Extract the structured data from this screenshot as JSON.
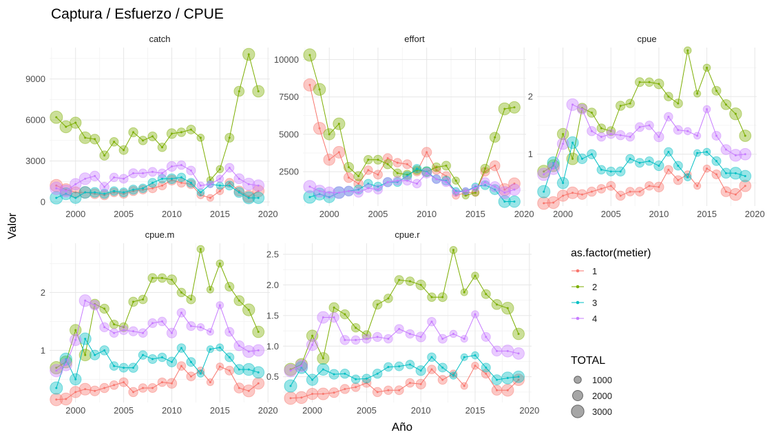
{
  "title": "Captura / Esfuerzo / CPUE",
  "xlabel": "Año",
  "ylabel": "Valor",
  "legend": {
    "color_title": "as.factor(metier)",
    "size_title": "TOTAL",
    "size_values": [
      1000,
      2000,
      3000
    ]
  },
  "colors": {
    "1": "#F8766D",
    "2": "#7CAE00",
    "3": "#00BFC4",
    "4": "#C77CFF"
  },
  "chart_data": {
    "type": "line",
    "layout": "facet_wrap",
    "x_ticks": [
      2000,
      2005,
      2010,
      2015,
      2020
    ],
    "xlim": [
      1997.3,
      2020.2
    ],
    "years": [
      1998,
      1999,
      2000,
      2001,
      2002,
      2003,
      2004,
      2005,
      2006,
      2007,
      2008,
      2009,
      2010,
      2011,
      2012,
      2013,
      2014,
      2015,
      2016,
      2017,
      2018,
      2019
    ],
    "total": [
      2900,
      2700,
      2400,
      2600,
      1800,
      1600,
      1400,
      1500,
      1600,
      1400,
      1500,
      1400,
      1800,
      1400,
      1500,
      1000,
      900,
      1000,
      1500,
      1900,
      2700,
      2500
    ],
    "facets": [
      {
        "name": "catch",
        "ylim": [
          -300,
          11300
        ],
        "y_ticks": [
          0,
          3000,
          6000,
          9000
        ],
        "series": [
          {
            "name": "1",
            "values": [
              1200,
              900,
              700,
              700,
              600,
              500,
              700,
              600,
              800,
              900,
              1000,
              1200,
              1600,
              1400,
              1300,
              500,
              300,
              800,
              1400,
              800,
              400,
              800
            ]
          },
          {
            "name": "2",
            "values": [
              6200,
              5500,
              5800,
              4700,
              4600,
              3400,
              4400,
              3800,
              5100,
              4500,
              4800,
              4000,
              5000,
              5100,
              5300,
              4700,
              1600,
              2400,
              4700,
              8100,
              10800,
              8100
            ]
          },
          {
            "name": "3",
            "values": [
              300,
              600,
              300,
              700,
              700,
              600,
              800,
              700,
              900,
              1000,
              1400,
              1700,
              1700,
              1800,
              1400,
              700,
              1300,
              1200,
              1200,
              700,
              300,
              300
            ]
          },
          {
            "name": "4",
            "values": [
              1000,
              800,
              1300,
              1700,
              1900,
              1100,
              1800,
              1700,
              2100,
              2100,
              2200,
              2100,
              2600,
              2700,
              2300,
              1200,
              1300,
              1700,
              2500,
              1700,
              1300,
              1200
            ]
          }
        ]
      },
      {
        "name": "effort",
        "ylim": [
          200,
          10800
        ],
        "y_ticks": [
          2500,
          5000,
          7500,
          10000
        ],
        "series": [
          {
            "name": "1",
            "values": [
              8300,
              5400,
              3300,
              3800,
              2100,
              1700,
              2600,
              2300,
              3400,
              3100,
              3000,
              2500,
              3800,
              2600,
              2200,
              900,
              1100,
              1100,
              2500,
              2900,
              1300,
              1700
            ]
          },
          {
            "name": "2",
            "values": [
              10300,
              8000,
              5000,
              5700,
              2800,
              2200,
              3300,
              3300,
              3000,
              2400,
              2300,
              2600,
              2500,
              2800,
              2900,
              1900,
              900,
              1100,
              2700,
              4800,
              6700,
              6800
            ]
          },
          {
            "name": "3",
            "values": [
              800,
              1000,
              800,
              1100,
              1200,
              1300,
              1700,
              1500,
              1800,
              1800,
              2200,
              2700,
              2500,
              2000,
              1900,
              1200,
              1200,
              1500,
              1600,
              1300,
              500,
              500
            ]
          },
          {
            "name": "4",
            "values": [
              1500,
              1200,
              1100,
              1100,
              1200,
              1100,
              1400,
              1300,
              1800,
              1900,
              1900,
              1700,
              2400,
              2000,
              1800,
              1100,
              1200,
              1400,
              1800,
              1500,
              1100,
              1300
            ]
          }
        ]
      },
      {
        "name": "cpue",
        "ylim": [
          0.1,
          2.85
        ],
        "y_ticks": [
          1,
          2
        ],
        "series": [
          {
            "name": "1",
            "values": [
              0.15,
              0.16,
              0.28,
              0.33,
              0.3,
              0.35,
              0.4,
              0.45,
              0.28,
              0.35,
              0.35,
              0.45,
              0.43,
              0.73,
              0.55,
              0.65,
              0.45,
              0.75,
              0.65,
              0.35,
              0.3,
              0.45
            ]
          },
          {
            "name": "2",
            "values": [
              0.7,
              0.8,
              1.35,
              0.92,
              1.8,
              1.72,
              1.45,
              1.4,
              1.84,
              1.88,
              2.25,
              2.25,
              2.22,
              2.0,
              1.88,
              2.8,
              2.05,
              2.5,
              2.1,
              1.86,
              1.7,
              1.32
            ]
          },
          {
            "name": "3",
            "values": [
              0.35,
              0.85,
              0.5,
              1.2,
              0.92,
              1.0,
              0.73,
              0.7,
              0.7,
              0.92,
              0.85,
              0.88,
              0.8,
              1.04,
              0.8,
              0.6,
              1.02,
              1.04,
              0.88,
              0.67,
              0.67,
              0.62
            ]
          },
          {
            "name": "4",
            "values": [
              0.65,
              0.75,
              1.18,
              1.86,
              1.78,
              1.4,
              1.3,
              1.35,
              1.33,
              1.3,
              1.47,
              1.5,
              1.3,
              1.65,
              1.42,
              1.4,
              1.32,
              1.78,
              1.32,
              1.08,
              0.98,
              1.0
            ]
          }
        ]
      },
      {
        "name": "cpue.m",
        "ylim": [
          0.1,
          2.85
        ],
        "y_ticks": [
          1,
          2
        ],
        "series": [
          {
            "name": "1",
            "values": [
              0.15,
              0.16,
              0.28,
              0.33,
              0.3,
              0.35,
              0.4,
              0.45,
              0.28,
              0.35,
              0.35,
              0.45,
              0.43,
              0.73,
              0.55,
              0.65,
              0.45,
              0.72,
              0.65,
              0.35,
              0.3,
              0.43
            ]
          },
          {
            "name": "2",
            "values": [
              0.7,
              0.8,
              1.35,
              0.92,
              1.8,
              1.72,
              1.45,
              1.4,
              1.84,
              1.88,
              2.25,
              2.25,
              2.22,
              2.0,
              1.88,
              2.75,
              2.05,
              2.5,
              2.1,
              1.86,
              1.7,
              1.32
            ]
          },
          {
            "name": "3",
            "values": [
              0.35,
              0.85,
              0.5,
              1.2,
              0.92,
              1.0,
              0.73,
              0.7,
              0.7,
              0.92,
              0.85,
              0.88,
              0.8,
              1.04,
              0.8,
              0.6,
              1.02,
              1.05,
              0.88,
              0.67,
              0.67,
              0.62
            ]
          },
          {
            "name": "4",
            "values": [
              0.65,
              0.75,
              1.18,
              1.86,
              1.78,
              1.4,
              1.3,
              1.35,
              1.33,
              1.3,
              1.47,
              1.5,
              1.3,
              1.65,
              1.42,
              1.4,
              1.32,
              1.78,
              1.32,
              1.08,
              0.98,
              1.0
            ]
          }
        ]
      },
      {
        "name": "cpue.r",
        "ylim": [
          0.08,
          2.68
        ],
        "y_ticks": [
          0.5,
          1.0,
          1.5,
          2.0,
          2.5
        ],
        "y_tick_labels": [
          "0.5",
          "1.0",
          "1.5",
          "2.0",
          "2.5"
        ],
        "series": [
          {
            "name": "1",
            "values": [
              0.15,
              0.16,
              0.22,
              0.22,
              0.24,
              0.3,
              0.33,
              0.4,
              0.25,
              0.28,
              0.28,
              0.4,
              0.38,
              0.62,
              0.45,
              0.55,
              0.35,
              0.68,
              0.55,
              0.28,
              0.28,
              0.45
            ]
          },
          {
            "name": "2",
            "values": [
              0.62,
              0.7,
              1.17,
              0.8,
              1.63,
              1.52,
              1.3,
              1.18,
              1.68,
              1.78,
              2.08,
              2.06,
              2.0,
              1.8,
              1.8,
              2.57,
              1.88,
              2.15,
              1.85,
              1.68,
              1.62,
              1.2
            ]
          },
          {
            "name": "3",
            "values": [
              0.35,
              0.65,
              0.45,
              0.62,
              0.54,
              0.55,
              0.46,
              0.47,
              0.55,
              0.66,
              0.67,
              0.7,
              0.6,
              0.82,
              0.65,
              0.52,
              0.82,
              0.85,
              0.65,
              0.45,
              0.48,
              0.5
            ]
          },
          {
            "name": "4",
            "values": [
              0.6,
              0.68,
              1.02,
              1.47,
              1.47,
              1.1,
              1.1,
              1.12,
              1.15,
              1.12,
              1.28,
              1.2,
              1.15,
              1.4,
              1.12,
              1.2,
              1.12,
              1.52,
              1.15,
              0.92,
              0.92,
              0.88
            ]
          }
        ]
      }
    ]
  }
}
